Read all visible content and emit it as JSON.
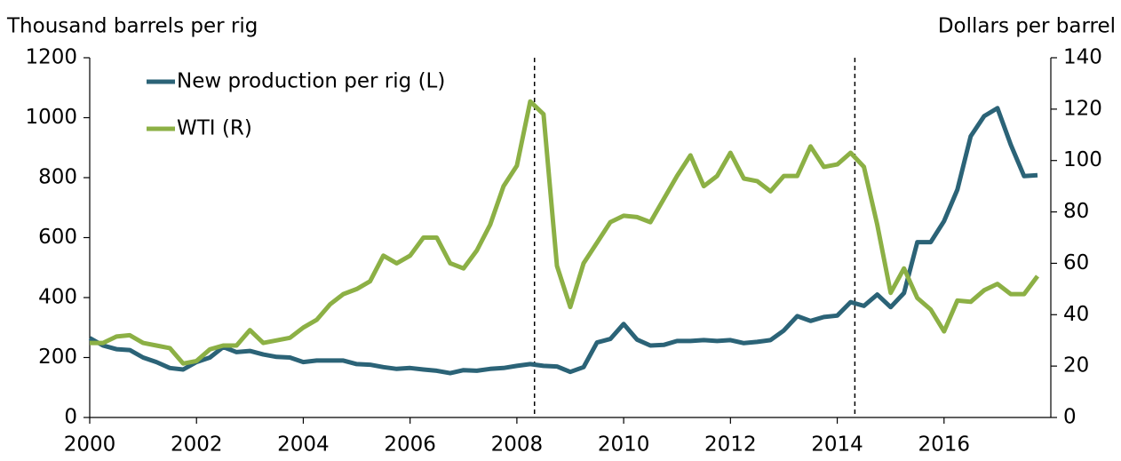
{
  "chart_data": {
    "type": "line",
    "y_label": "Thousand barrels per rig",
    "y2_label": "Dollars per barrel",
    "x": [
      2000,
      2000.25,
      2000.5,
      2000.75,
      2001,
      2001.25,
      2001.5,
      2001.75,
      2002,
      2002.25,
      2002.5,
      2002.75,
      2003,
      2003.25,
      2003.5,
      2003.75,
      2004,
      2004.25,
      2004.5,
      2004.75,
      2005,
      2005.25,
      2005.5,
      2005.75,
      2006,
      2006.25,
      2006.5,
      2006.75,
      2007,
      2007.25,
      2007.5,
      2007.75,
      2008,
      2008.25,
      2008.5,
      2008.75,
      2009,
      2009.25,
      2009.5,
      2009.75,
      2010,
      2010.25,
      2010.5,
      2010.75,
      2011,
      2011.25,
      2011.5,
      2011.75,
      2012,
      2012.25,
      2012.5,
      2012.75,
      2013,
      2013.25,
      2013.5,
      2013.75,
      2014,
      2014.25,
      2014.5,
      2014.75,
      2015,
      2015.25,
      2015.5,
      2015.75,
      2016,
      2016.25,
      2016.5,
      2016.75,
      2017,
      2017.25,
      2017.5,
      2017.75
    ],
    "series": [
      {
        "name": "New production per rig (L)",
        "color": "#2b6377",
        "axis": "y",
        "values": [
          265,
          240,
          228,
          225,
          200,
          185,
          165,
          160,
          185,
          200,
          235,
          218,
          222,
          210,
          202,
          200,
          185,
          190,
          190,
          190,
          178,
          176,
          168,
          162,
          165,
          160,
          156,
          148,
          158,
          156,
          162,
          165,
          172,
          178,
          172,
          170,
          152,
          168,
          250,
          262,
          312,
          260,
          240,
          242,
          255,
          255,
          258,
          255,
          258,
          248,
          252,
          258,
          290,
          338,
          322,
          335,
          340,
          385,
          372,
          410,
          368,
          415,
          585,
          585,
          655,
          760,
          938,
          1005,
          1032,
          910,
          805,
          808
        ]
      },
      {
        "name": "WTI (R)",
        "color": "#8cb045",
        "axis": "y2",
        "values": [
          29,
          29,
          31.5,
          32,
          29,
          28,
          27,
          21,
          22,
          26.5,
          28,
          28,
          34,
          29,
          30,
          31,
          35,
          38,
          44,
          48,
          50,
          53,
          63,
          60,
          63,
          70,
          70,
          60,
          58,
          65,
          75,
          90,
          98,
          123,
          118,
          59,
          43,
          60,
          68,
          76,
          78.5,
          78,
          76,
          85,
          94,
          102,
          90,
          94,
          103,
          93,
          92,
          88,
          94,
          94,
          105.5,
          97.5,
          98.5,
          103,
          97.5,
          75,
          48.5,
          58,
          46.5,
          42,
          33.5,
          45.5,
          45,
          49.5,
          52,
          48,
          48,
          55
        ]
      }
    ],
    "xlim": [
      2000,
      2018
    ],
    "xticks": [
      2000,
      2002,
      2004,
      2006,
      2008,
      2010,
      2012,
      2014,
      2016
    ],
    "ylim": [
      0,
      1200
    ],
    "yticks": [
      0,
      200,
      400,
      600,
      800,
      1000,
      1200
    ],
    "y2lim": [
      0,
      140
    ],
    "y2ticks": [
      0,
      20,
      40,
      60,
      80,
      100,
      120,
      140
    ],
    "vlines": [
      2008.33,
      2014.33
    ],
    "legend": "upper left",
    "grid": false
  }
}
